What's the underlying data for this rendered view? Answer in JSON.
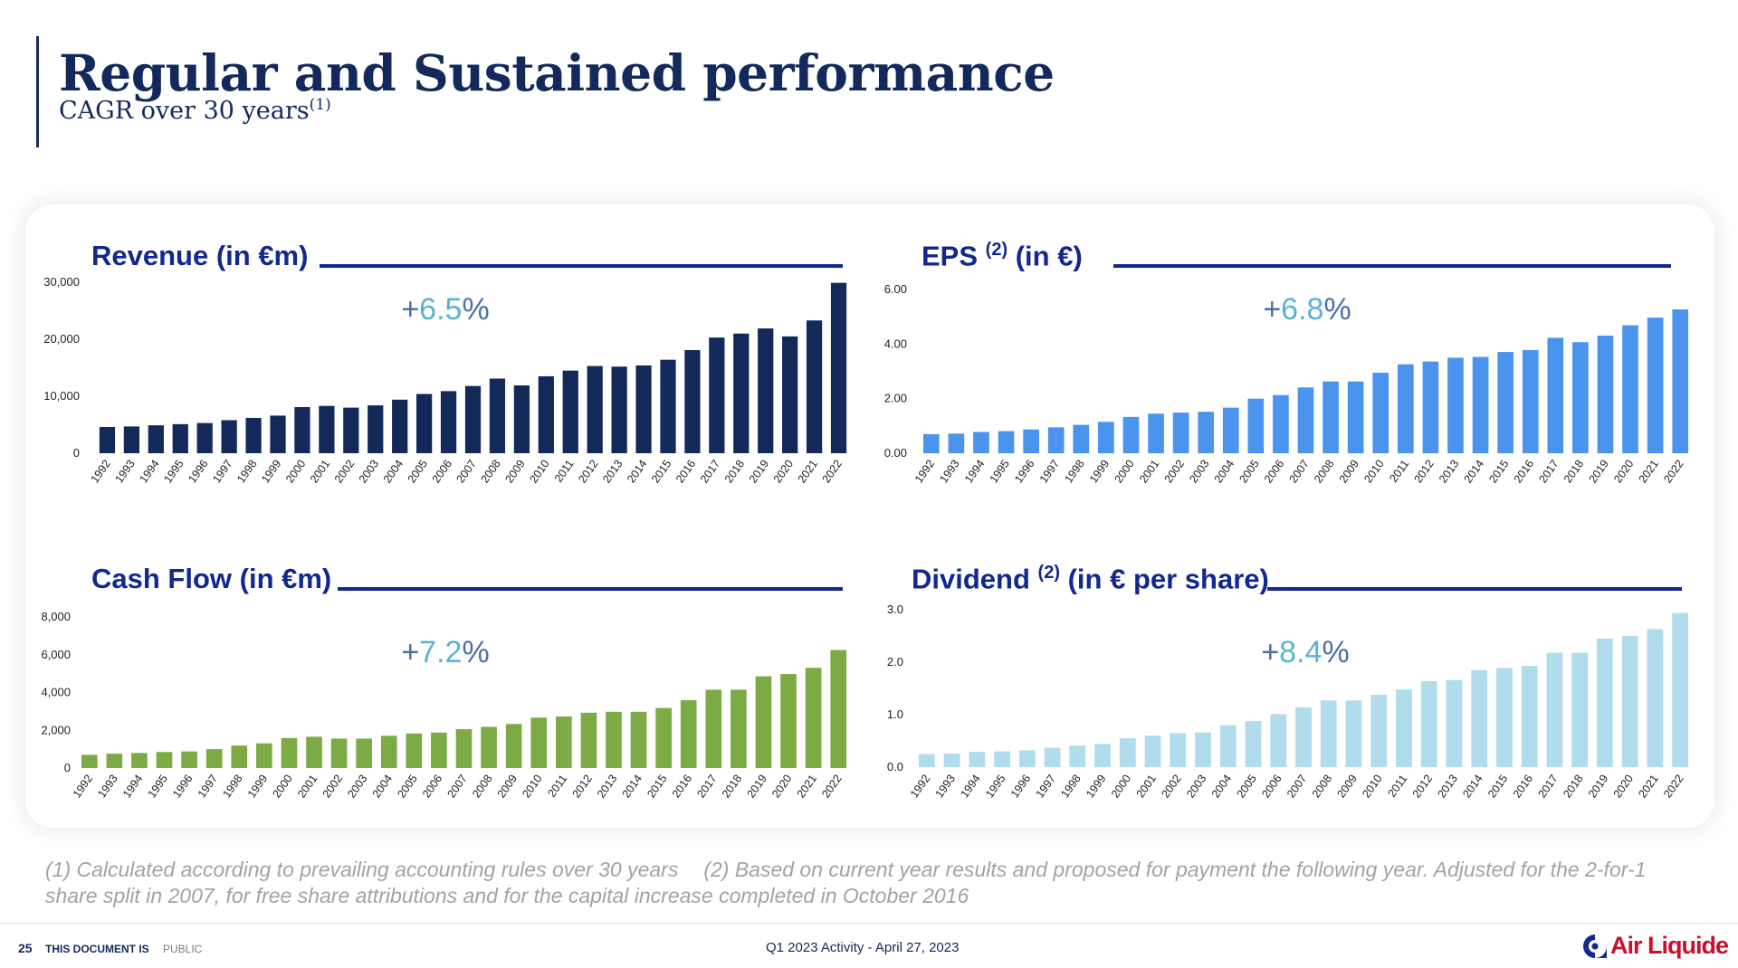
{
  "header": {
    "title": "Regular and Sustained performance",
    "subtitle": "CAGR over 30 years",
    "subtitle_sup": "(1)"
  },
  "charts": {
    "revenue": {
      "title": "Revenue (in €m)",
      "cagr_sign": "+",
      "cagr_value": "6.5",
      "cagr_unit": "%"
    },
    "eps": {
      "title_main": "EPS",
      "title_sup": "(2)",
      "title_rest": "(in €)",
      "cagr_sign": "+",
      "cagr_value": "6.8",
      "cagr_unit": "%"
    },
    "cashflow": {
      "title": "Cash Flow (in €m)",
      "cagr_sign": "+",
      "cagr_value": "7.2",
      "cagr_unit": "%"
    },
    "dividend": {
      "title_main": "Dividend",
      "title_sup": "(2)",
      "title_rest": "(in € per share)",
      "cagr_sign": "+",
      "cagr_value": "8.4",
      "cagr_unit": "%"
    }
  },
  "colors": {
    "revenue": "#12295a",
    "eps": "#4a94ee",
    "cashflow": "#7caa45",
    "dividend": "#b0dcec",
    "title": "#12288f",
    "accent": "#c8102e"
  },
  "chart_data": [
    {
      "id": "revenue",
      "type": "bar",
      "categories": [
        "1992",
        "1993",
        "1994",
        "1995",
        "1996",
        "1997",
        "1998",
        "1999",
        "2000",
        "2001",
        "2002",
        "2003",
        "2004",
        "2005",
        "2006",
        "2007",
        "2008",
        "2009",
        "2010",
        "2011",
        "2012",
        "2013",
        "2014",
        "2015",
        "2016",
        "2017",
        "2018",
        "2019",
        "2020",
        "2021",
        "2022"
      ],
      "values": [
        4600,
        4700,
        4900,
        5100,
        5300,
        5800,
        6200,
        6600,
        8100,
        8300,
        8000,
        8400,
        9400,
        10400,
        10900,
        11800,
        13100,
        11900,
        13500,
        14500,
        15300,
        15200,
        15400,
        16400,
        18100,
        20300,
        21000,
        21900,
        20500,
        23300,
        29900
      ],
      "ylim": [
        0,
        30000
      ],
      "yticks": [
        "0",
        "10,000",
        "20,000",
        "30,000"
      ],
      "ytick_values": [
        0,
        10000,
        20000,
        30000
      ]
    },
    {
      "id": "eps",
      "type": "bar",
      "categories": [
        "1992",
        "1993",
        "1994",
        "1995",
        "1996",
        "1997",
        "1998",
        "1999",
        "2000",
        "2001",
        "2002",
        "2003",
        "2004",
        "2005",
        "2006",
        "2007",
        "2008",
        "2009",
        "2010",
        "2011",
        "2012",
        "2013",
        "2014",
        "2015",
        "2016",
        "2017",
        "2018",
        "2019",
        "2020",
        "2021",
        "2022"
      ],
      "values": [
        0.7,
        0.72,
        0.78,
        0.81,
        0.87,
        0.95,
        1.04,
        1.15,
        1.33,
        1.45,
        1.49,
        1.52,
        1.67,
        2.0,
        2.13,
        2.41,
        2.63,
        2.63,
        2.95,
        3.26,
        3.36,
        3.5,
        3.53,
        3.71,
        3.78,
        4.23,
        4.07,
        4.31,
        4.69,
        4.97,
        5.27
      ],
      "ylim": [
        0,
        6
      ],
      "yticks": [
        "0.00",
        "2.00",
        "4.00",
        "6.00"
      ],
      "ytick_values": [
        0,
        2,
        4,
        6
      ]
    },
    {
      "id": "cashflow",
      "type": "bar",
      "categories": [
        "1992",
        "1993",
        "1994",
        "1995",
        "1996",
        "1997",
        "1998",
        "1999",
        "2000",
        "2001",
        "2002",
        "2003",
        "2004",
        "2005",
        "2006",
        "2007",
        "2008",
        "2009",
        "2010",
        "2011",
        "2012",
        "2013",
        "2014",
        "2015",
        "2016",
        "2017",
        "2018",
        "2019",
        "2020",
        "2021",
        "2022"
      ],
      "values": [
        700,
        760,
        800,
        850,
        880,
        1000,
        1190,
        1310,
        1590,
        1660,
        1560,
        1560,
        1710,
        1830,
        1880,
        2060,
        2180,
        2330,
        2670,
        2730,
        2930,
        2980,
        2980,
        3180,
        3590,
        4150,
        4150,
        4860,
        4980,
        5310,
        6250
      ],
      "ylim": [
        0,
        8000
      ],
      "yticks": [
        "0",
        "2,000",
        "4,000",
        "6,000",
        "8,000"
      ],
      "ytick_values": [
        0,
        2000,
        4000,
        6000,
        8000
      ]
    },
    {
      "id": "dividend",
      "type": "bar",
      "categories": [
        "1992",
        "1993",
        "1994",
        "1995",
        "1996",
        "1997",
        "1998",
        "1999",
        "2000",
        "2001",
        "2002",
        "2003",
        "2004",
        "2005",
        "2006",
        "2007",
        "2008",
        "2009",
        "2010",
        "2011",
        "2012",
        "2013",
        "2014",
        "2015",
        "2016",
        "2017",
        "2018",
        "2019",
        "2020",
        "2021",
        "2022"
      ],
      "values": [
        0.25,
        0.26,
        0.29,
        0.3,
        0.32,
        0.37,
        0.41,
        0.44,
        0.55,
        0.6,
        0.65,
        0.66,
        0.8,
        0.88,
        1.01,
        1.14,
        1.27,
        1.27,
        1.38,
        1.48,
        1.64,
        1.66,
        1.85,
        1.89,
        1.93,
        2.18,
        2.18,
        2.45,
        2.5,
        2.63,
        2.94
      ],
      "ylim": [
        0,
        3
      ],
      "yticks": [
        "0.0",
        "1.0",
        "2.0",
        "3.0"
      ],
      "ytick_values": [
        0,
        1,
        2,
        3
      ]
    }
  ],
  "footnotes": {
    "note1": "(1) Calculated according to prevailing accounting rules over 30 years",
    "note2": "(2) Based on current year results and proposed for payment the following year. Adjusted for the 2-for-1 share split in 2007, for free share attributions and for the capital increase completed in October 2016"
  },
  "footer": {
    "page_number": "25",
    "doc_label": "THIS DOCUMENT IS",
    "doc_class": "PUBLIC",
    "center_text": "Q1 2023 Activity - April 27, 2023",
    "logo_text": "Air Liquide"
  }
}
